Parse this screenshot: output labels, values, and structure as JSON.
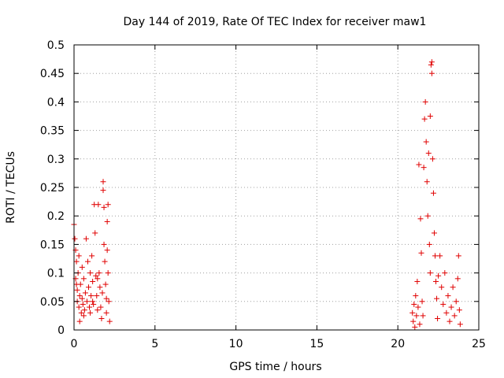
{
  "chart_data": {
    "type": "scatter",
    "title": "Day 144 of 2019, Rate Of TEC Index for receiver maw1",
    "xlabel": "GPS time / hours",
    "ylabel": "ROTI / TECUs",
    "xlim": [
      0,
      25
    ],
    "ylim": [
      0,
      0.5
    ],
    "xticks": [
      0,
      5,
      10,
      15,
      20,
      25
    ],
    "xtick_labels": [
      "0",
      "5",
      "10",
      "15",
      "20",
      "25"
    ],
    "yticks": [
      0,
      0.05,
      0.1,
      0.15,
      0.2,
      0.25,
      0.3,
      0.35,
      0.4,
      0.45,
      0.5
    ],
    "ytick_labels": [
      "0",
      "0.05",
      "0.1",
      "0.15",
      "0.2",
      "0.25",
      "0.3",
      "0.35",
      "0.4",
      "0.45",
      "0.5"
    ],
    "grid": true,
    "marker": "+",
    "color": "#e00000",
    "series": [
      {
        "name": "maw1",
        "points": [
          [
            0.0,
            0.185
          ],
          [
            0.05,
            0.16
          ],
          [
            0.1,
            0.14
          ],
          [
            0.1,
            0.09
          ],
          [
            0.15,
            0.12
          ],
          [
            0.2,
            0.07
          ],
          [
            0.2,
            0.05
          ],
          [
            0.25,
            0.1
          ],
          [
            0.3,
            0.13
          ],
          [
            0.3,
            0.04
          ],
          [
            0.35,
            0.06
          ],
          [
            0.4,
            0.08
          ],
          [
            0.45,
            0.03
          ],
          [
            0.5,
            0.055
          ],
          [
            0.5,
            0.11
          ],
          [
            0.55,
            0.045
          ],
          [
            0.6,
            0.09
          ],
          [
            0.65,
            0.035
          ],
          [
            0.7,
            0.065
          ],
          [
            0.75,
            0.16
          ],
          [
            0.8,
            0.05
          ],
          [
            0.85,
            0.12
          ],
          [
            0.9,
            0.075
          ],
          [
            0.95,
            0.04
          ],
          [
            1.0,
            0.1
          ],
          [
            1.0,
            0.03
          ],
          [
            1.05,
            0.06
          ],
          [
            1.1,
            0.13
          ],
          [
            1.15,
            0.085
          ],
          [
            1.2,
            0.045
          ],
          [
            1.25,
            0.22
          ],
          [
            1.3,
            0.17
          ],
          [
            1.35,
            0.095
          ],
          [
            1.4,
            0.06
          ],
          [
            1.45,
            0.035
          ],
          [
            1.5,
            0.22
          ],
          [
            1.55,
            0.1
          ],
          [
            1.6,
            0.075
          ],
          [
            1.65,
            0.04
          ],
          [
            1.7,
            0.02
          ],
          [
            1.75,
            0.065
          ],
          [
            1.8,
            0.26
          ],
          [
            1.8,
            0.245
          ],
          [
            1.85,
            0.215
          ],
          [
            1.85,
            0.15
          ],
          [
            1.9,
            0.12
          ],
          [
            1.95,
            0.08
          ],
          [
            2.0,
            0.055
          ],
          [
            2.0,
            0.03
          ],
          [
            2.05,
            0.19
          ],
          [
            2.1,
            0.22
          ],
          [
            2.1,
            0.1
          ],
          [
            2.15,
            0.05
          ],
          [
            2.2,
            0.015
          ],
          [
            0.15,
            0.08
          ],
          [
            0.35,
            0.015
          ],
          [
            0.6,
            0.025
          ],
          [
            1.15,
            0.05
          ],
          [
            1.45,
            0.09
          ],
          [
            2.05,
            0.14
          ],
          [
            20.9,
            0.03
          ],
          [
            20.95,
            0.015
          ],
          [
            21.0,
            0.045
          ],
          [
            21.05,
            0.005
          ],
          [
            21.1,
            0.06
          ],
          [
            21.15,
            0.025
          ],
          [
            21.2,
            0.085
          ],
          [
            21.25,
            0.04
          ],
          [
            21.3,
            0.29
          ],
          [
            21.35,
            0.01
          ],
          [
            21.4,
            0.195
          ],
          [
            21.45,
            0.135
          ],
          [
            21.5,
            0.05
          ],
          [
            21.55,
            0.025
          ],
          [
            21.6,
            0.285
          ],
          [
            21.65,
            0.37
          ],
          [
            21.7,
            0.4
          ],
          [
            21.75,
            0.33
          ],
          [
            21.8,
            0.26
          ],
          [
            21.85,
            0.2
          ],
          [
            21.9,
            0.31
          ],
          [
            21.95,
            0.15
          ],
          [
            22.0,
            0.1
          ],
          [
            22.0,
            0.375
          ],
          [
            22.05,
            0.465
          ],
          [
            22.1,
            0.45
          ],
          [
            22.1,
            0.47
          ],
          [
            22.15,
            0.3
          ],
          [
            22.2,
            0.24
          ],
          [
            22.25,
            0.17
          ],
          [
            22.3,
            0.13
          ],
          [
            22.35,
            0.085
          ],
          [
            22.4,
            0.055
          ],
          [
            22.45,
            0.02
          ],
          [
            22.5,
            0.095
          ],
          [
            22.6,
            0.13
          ],
          [
            22.7,
            0.075
          ],
          [
            22.8,
            0.045
          ],
          [
            22.9,
            0.1
          ],
          [
            23.0,
            0.03
          ],
          [
            23.1,
            0.06
          ],
          [
            23.2,
            0.015
          ],
          [
            23.3,
            0.04
          ],
          [
            23.4,
            0.075
          ],
          [
            23.5,
            0.025
          ],
          [
            23.6,
            0.05
          ],
          [
            23.7,
            0.09
          ],
          [
            23.75,
            0.13
          ],
          [
            23.8,
            0.035
          ],
          [
            23.85,
            0.01
          ]
        ]
      }
    ]
  }
}
